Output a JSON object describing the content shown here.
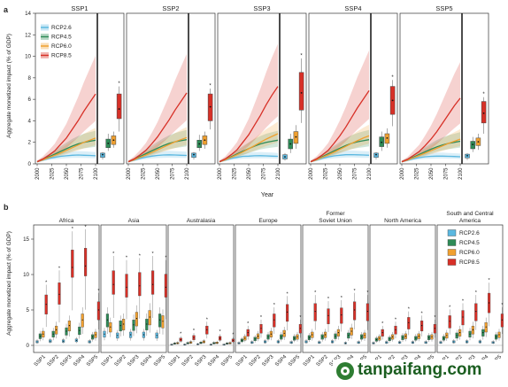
{
  "panel_a": {
    "letter": "a",
    "ylabel": "Aggregate monetized impact (% of GDP)",
    "xlabel": "Year",
    "yticks": [
      "0",
      "2",
      "4",
      "6",
      "8",
      "10",
      "12",
      "14"
    ],
    "xticks": [
      "2000",
      "2025",
      "2050",
      "2075",
      "2100"
    ],
    "scenarios": [
      "SSP1",
      "SSP2",
      "SSP3",
      "SSP4",
      "SSP5"
    ],
    "legend": [
      "RCP2.6",
      "RCP4.5",
      "RCP6.0",
      "RCP8.5"
    ]
  },
  "panel_b": {
    "letter": "b",
    "ylabel": "Aggregate monetized impact (% of GDP)",
    "yticks": [
      "0",
      "5",
      "10",
      "15"
    ],
    "regions": [
      "Africa",
      "Asia",
      "Australasia",
      "Europe",
      "Former\nSoviet Union",
      "North America",
      "South and Central\nAmerica"
    ],
    "xticks": [
      "SSP1",
      "SSP2",
      "SSP3",
      "SSP4",
      "SSP5"
    ],
    "legend": [
      "RCP2.6",
      "RCP4.5",
      "RCP6.0",
      "RCP8.5"
    ]
  },
  "colors": {
    "RCP2.6": "#5bb8e0",
    "RCP4.5": "#2e8b57",
    "RCP6.0": "#f0a030",
    "RCP8.5": "#d73027"
  },
  "watermark": "tanpaifang.com",
  "chart_data": [
    {
      "type": "line",
      "title": "",
      "xlabel": "Year",
      "ylabel": "Aggregate monetized impact (% of GDP)",
      "xlim": [
        2000,
        2100
      ],
      "ylim": [
        0,
        14
      ],
      "x": [
        2000,
        2010,
        2020,
        2030,
        2040,
        2050,
        2060,
        2070,
        2080,
        2090,
        2100
      ],
      "panels": [
        {
          "name": "SSP1",
          "series": [
            {
              "name": "RCP2.6",
              "values": [
                0.2,
                0.35,
                0.5,
                0.6,
                0.7,
                0.75,
                0.8,
                0.82,
                0.8,
                0.78,
                0.75
              ]
            },
            {
              "name": "RCP4.5",
              "values": [
                0.2,
                0.4,
                0.65,
                0.9,
                1.15,
                1.4,
                1.65,
                1.85,
                2.0,
                2.1,
                2.2
              ]
            },
            {
              "name": "RCP6.0",
              "values": [
                0.2,
                0.38,
                0.58,
                0.8,
                1.0,
                1.25,
                1.5,
                1.75,
                2.0,
                2.2,
                2.4
              ]
            },
            {
              "name": "RCP8.5",
              "values": [
                0.2,
                0.45,
                0.8,
                1.2,
                1.8,
                2.4,
                3.2,
                4.0,
                4.9,
                5.7,
                6.5
              ]
            }
          ],
          "boxes": [
            {
              "name": "RCP2.6",
              "q1": 0.6,
              "median": 0.8,
              "q3": 1.0,
              "min": 0.4,
              "max": 1.1,
              "mean": 0.85
            },
            {
              "name": "RCP4.5",
              "q1": 1.5,
              "median": 1.9,
              "q3": 2.3,
              "min": 1.2,
              "max": 2.8,
              "mean": 1.9
            },
            {
              "name": "RCP6.0",
              "q1": 1.8,
              "median": 2.1,
              "q3": 2.6,
              "min": 1.5,
              "max": 3.0,
              "mean": 2.2
            },
            {
              "name": "RCP8.5",
              "q1": 4.2,
              "median": 5.0,
              "q3": 6.5,
              "min": 3.0,
              "max": 7.2,
              "mean": 5.1
            }
          ]
        },
        {
          "name": "SSP2",
          "series": [
            {
              "name": "RCP2.6",
              "values": [
                0.2,
                0.35,
                0.5,
                0.62,
                0.72,
                0.78,
                0.82,
                0.84,
                0.82,
                0.8,
                0.78
              ]
            },
            {
              "name": "RCP4.5",
              "values": [
                0.2,
                0.4,
                0.68,
                0.95,
                1.2,
                1.45,
                1.7,
                1.9,
                2.05,
                2.15,
                2.25
              ]
            },
            {
              "name": "RCP6.0",
              "values": [
                0.2,
                0.38,
                0.6,
                0.82,
                1.05,
                1.3,
                1.55,
                1.8,
                2.05,
                2.25,
                2.45
              ]
            },
            {
              "name": "RCP8.5",
              "values": [
                0.2,
                0.45,
                0.82,
                1.25,
                1.85,
                2.5,
                3.3,
                4.1,
                5.0,
                5.8,
                6.6
              ]
            }
          ],
          "boxes": [
            {
              "name": "RCP2.6",
              "q1": 0.6,
              "median": 0.8,
              "q3": 1.0,
              "min": 0.4,
              "max": 1.1,
              "mean": 0.85
            },
            {
              "name": "RCP4.5",
              "q1": 1.5,
              "median": 1.8,
              "q3": 2.2,
              "min": 1.2,
              "max": 2.7,
              "mean": 1.85
            },
            {
              "name": "RCP6.0",
              "q1": 1.8,
              "median": 2.2,
              "q3": 2.6,
              "min": 1.4,
              "max": 3.0,
              "mean": 2.2
            },
            {
              "name": "RCP8.5",
              "q1": 4.0,
              "median": 5.2,
              "q3": 6.5,
              "min": 3.2,
              "max": 7.0,
              "mean": 5.3
            }
          ]
        },
        {
          "name": "SSP3",
          "series": [
            {
              "name": "RCP2.6",
              "values": [
                0.2,
                0.35,
                0.5,
                0.6,
                0.7,
                0.72,
                0.75,
                0.76,
                0.74,
                0.72,
                0.7
              ]
            },
            {
              "name": "RCP4.5",
              "values": [
                0.2,
                0.4,
                0.65,
                0.92,
                1.18,
                1.42,
                1.65,
                1.85,
                2.0,
                2.1,
                2.2
              ]
            },
            {
              "name": "RCP6.0",
              "values": [
                0.2,
                0.38,
                0.6,
                0.85,
                1.1,
                1.4,
                1.7,
                2.0,
                2.3,
                2.55,
                2.8
              ]
            },
            {
              "name": "RCP8.5",
              "values": [
                0.2,
                0.45,
                0.85,
                1.3,
                2.0,
                2.7,
                3.6,
                4.5,
                5.5,
                6.4,
                7.2
              ]
            }
          ],
          "boxes": [
            {
              "name": "RCP2.6",
              "q1": 0.45,
              "median": 0.6,
              "q3": 0.85,
              "min": 0.3,
              "max": 1.0,
              "mean": 0.65
            },
            {
              "name": "RCP4.5",
              "q1": 1.4,
              "median": 1.8,
              "q3": 2.3,
              "min": 1.0,
              "max": 2.8,
              "mean": 1.85
            },
            {
              "name": "RCP6.0",
              "q1": 1.9,
              "median": 2.4,
              "q3": 3.0,
              "min": 1.4,
              "max": 3.6,
              "mean": 2.5
            },
            {
              "name": "RCP8.5",
              "q1": 5.0,
              "median": 6.5,
              "q3": 8.5,
              "min": 3.8,
              "max": 9.8,
              "mean": 6.6
            }
          ]
        },
        {
          "name": "SSP4",
          "series": [
            {
              "name": "RCP2.6",
              "values": [
                0.2,
                0.35,
                0.52,
                0.64,
                0.74,
                0.8,
                0.85,
                0.86,
                0.84,
                0.82,
                0.8
              ]
            },
            {
              "name": "RCP4.5",
              "values": [
                0.2,
                0.4,
                0.66,
                0.93,
                1.2,
                1.45,
                1.7,
                1.9,
                2.05,
                2.15,
                2.25
              ]
            },
            {
              "name": "RCP6.0",
              "values": [
                0.2,
                0.38,
                0.6,
                0.84,
                1.08,
                1.35,
                1.62,
                1.9,
                2.15,
                2.4,
                2.6
              ]
            },
            {
              "name": "RCP8.5",
              "values": [
                0.2,
                0.45,
                0.82,
                1.25,
                1.9,
                2.6,
                3.4,
                4.3,
                5.2,
                6.0,
                6.8
              ]
            }
          ],
          "boxes": [
            {
              "name": "RCP2.6",
              "q1": 0.6,
              "median": 0.8,
              "q3": 1.0,
              "min": 0.4,
              "max": 1.1,
              "mean": 0.85
            },
            {
              "name": "RCP4.5",
              "q1": 1.6,
              "median": 2.0,
              "q3": 2.5,
              "min": 1.2,
              "max": 3.0,
              "mean": 2.0
            },
            {
              "name": "RCP6.0",
              "q1": 1.9,
              "median": 2.4,
              "q3": 2.8,
              "min": 1.5,
              "max": 3.3,
              "mean": 2.4
            },
            {
              "name": "RCP8.5",
              "q1": 4.6,
              "median": 5.9,
              "q3": 7.2,
              "min": 3.5,
              "max": 7.8,
              "mean": 5.9
            }
          ]
        },
        {
          "name": "SSP5",
          "series": [
            {
              "name": "RCP2.6",
              "values": [
                0.2,
                0.33,
                0.48,
                0.58,
                0.66,
                0.7,
                0.72,
                0.72,
                0.7,
                0.68,
                0.66
              ]
            },
            {
              "name": "RCP4.5",
              "values": [
                0.2,
                0.38,
                0.62,
                0.88,
                1.12,
                1.36,
                1.58,
                1.76,
                1.9,
                2.0,
                2.1
              ]
            },
            {
              "name": "RCP6.0",
              "values": [
                0.2,
                0.36,
                0.56,
                0.78,
                1.0,
                1.22,
                1.45,
                1.68,
                1.9,
                2.1,
                2.3
              ]
            },
            {
              "name": "RCP8.5",
              "values": [
                0.2,
                0.42,
                0.78,
                1.15,
                1.7,
                2.3,
                3.0,
                3.8,
                4.6,
                5.4,
                6.1
              ]
            }
          ],
          "boxes": [
            {
              "name": "RCP2.6",
              "q1": 0.55,
              "median": 0.7,
              "q3": 0.9,
              "min": 0.35,
              "max": 1.0,
              "mean": 0.75
            },
            {
              "name": "RCP4.5",
              "q1": 1.4,
              "median": 1.8,
              "q3": 2.1,
              "min": 1.1,
              "max": 2.5,
              "mean": 1.8
            },
            {
              "name": "RCP6.0",
              "q1": 1.7,
              "median": 2.0,
              "q3": 2.4,
              "min": 1.3,
              "max": 2.8,
              "mean": 2.05
            },
            {
              "name": "RCP8.5",
              "q1": 3.8,
              "median": 4.6,
              "q3": 5.8,
              "min": 2.8,
              "max": 6.2,
              "mean": 4.7
            }
          ]
        }
      ]
    },
    {
      "type": "box",
      "title": "",
      "xlabel": "",
      "ylabel": "Aggregate monetized impact (% of GDP)",
      "ylim": [
        -1,
        17
      ],
      "categories": [
        "SSP1",
        "SSP2",
        "SSP3",
        "SSP4",
        "SSP5"
      ],
      "rcps": [
        "RCP2.6",
        "RCP4.5",
        "RCP6.0",
        "RCP8.5"
      ],
      "regions": [
        {
          "name": "Africa",
          "medians": [
            [
              0.5,
              1.3,
              1.6,
              5.8
            ],
            [
              0.6,
              1.6,
              2.2,
              7.2
            ],
            [
              0.6,
              2.0,
              2.8,
              11.0
            ],
            [
              0.7,
              2.1,
              3.6,
              11.2
            ],
            [
              0.5,
              1.2,
              1.5,
              5.0
            ]
          ]
        },
        {
          "name": "Asia",
          "medians": [
            [
              1.6,
              3.6,
              2.6,
              8.6
            ],
            [
              1.4,
              2.8,
              3.0,
              8.2
            ],
            [
              1.5,
              2.9,
              3.8,
              8.4
            ],
            [
              1.5,
              3.0,
              4.0,
              8.6
            ],
            [
              1.4,
              3.6,
              3.4,
              8.2
            ]
          ]
        },
        {
          "name": "Australasia",
          "medians": [
            [
              0.1,
              0.25,
              0.3,
              0.8
            ],
            [
              0.1,
              0.3,
              0.4,
              1.1
            ],
            [
              0.15,
              0.35,
              0.5,
              2.2
            ],
            [
              0.1,
              0.3,
              0.35,
              1.0
            ],
            [
              0.1,
              0.25,
              0.3,
              0.7
            ]
          ]
        },
        {
          "name": "Europe",
          "medians": [
            [
              0.3,
              0.7,
              1.0,
              1.8
            ],
            [
              0.4,
              0.9,
              1.3,
              2.4
            ],
            [
              0.5,
              1.2,
              1.6,
              3.6
            ],
            [
              0.5,
              1.2,
              1.7,
              4.7
            ],
            [
              0.4,
              1.0,
              1.2,
              2.4
            ]
          ]
        },
        {
          "name": "Former\nSoviet Union",
          "medians": [
            [
              0.5,
              1.1,
              1.5,
              4.8
            ],
            [
              0.4,
              1.2,
              1.5,
              4.2
            ],
            [
              0.5,
              1.3,
              1.8,
              4.3
            ],
            [
              0.3,
              1.4,
              2.0,
              5.0
            ],
            [
              0.4,
              1.2,
              1.4,
              4.8
            ]
          ]
        },
        {
          "name": "North America",
          "medians": [
            [
              0.3,
              0.8,
              1.0,
              1.8
            ],
            [
              0.4,
              0.9,
              1.2,
              2.2
            ],
            [
              0.4,
              1.1,
              1.3,
              3.2
            ],
            [
              0.4,
              1.0,
              1.3,
              2.8
            ],
            [
              0.4,
              1.1,
              1.2,
              2.4
            ]
          ]
        },
        {
          "name": "South and Central\nAmerica",
          "medians": [
            [
              0.4,
              1.0,
              1.4,
              3.4
            ],
            [
              0.5,
              1.4,
              1.8,
              4.0
            ],
            [
              0.5,
              1.6,
              2.2,
              4.8
            ],
            [
              0.5,
              1.8,
              2.6,
              6.0
            ],
            [
              0.4,
              1.2,
              1.5,
              3.6
            ]
          ]
        }
      ]
    }
  ]
}
